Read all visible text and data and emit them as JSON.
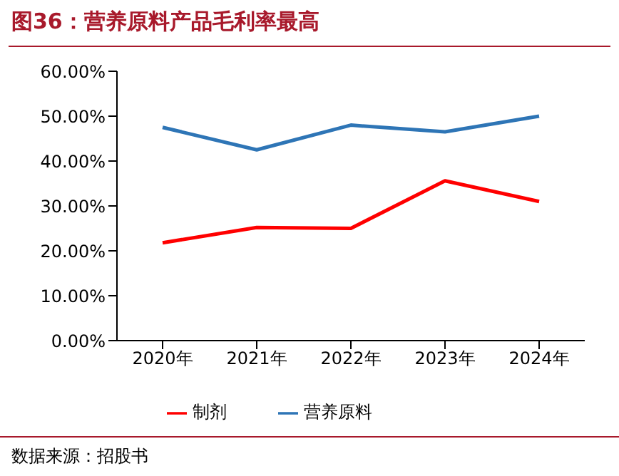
{
  "chart_data": {
    "type": "line",
    "title": "图36：营养原料产品毛利率最高",
    "categories": [
      "2020年",
      "2021年",
      "2022年",
      "2023年",
      "2024年"
    ],
    "series": [
      {
        "name": "营养原料",
        "color": "#2e75b6",
        "values": [
          47.5,
          42.5,
          48,
          46.5,
          50
        ]
      },
      {
        "name": "制剂",
        "color": "#ff0000",
        "values": [
          21.8,
          25.2,
          25,
          35.6,
          31
        ]
      }
    ],
    "ylim": [
      0,
      60
    ],
    "yticks": [
      {
        "value": 0,
        "label": "0.00%"
      },
      {
        "value": 10,
        "label": "10.00%"
      },
      {
        "value": 20,
        "label": "20.00%"
      },
      {
        "value": 30,
        "label": "30.00%"
      },
      {
        "value": 40,
        "label": "40.00%"
      },
      {
        "value": 50,
        "label": "50.00%"
      },
      {
        "value": 60,
        "label": "60.00%"
      }
    ],
    "grid": false,
    "legend": "bottom",
    "marker": "none",
    "line_style": "solid",
    "annotations": [
      "数据来源：招股书"
    ]
  }
}
